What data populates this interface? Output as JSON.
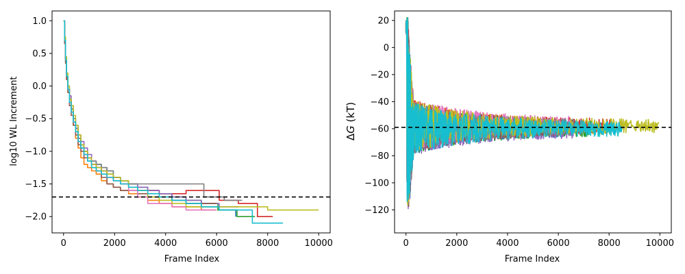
{
  "chart_data": [
    {
      "type": "line",
      "title": "",
      "xlabel": "Frame Index",
      "ylabel": "log10 WL Increment",
      "xlim": [
        -450,
        10450
      ],
      "ylim": [
        -2.25,
        1.15
      ],
      "xticks": [
        0,
        2000,
        4000,
        6000,
        8000,
        10000
      ],
      "yticks": [
        1.0,
        0.5,
        0.0,
        -0.5,
        -1.0,
        -1.5,
        -2.0
      ],
      "xtick_labels": [
        "0",
        "2000",
        "4000",
        "6000",
        "8000",
        "10000"
      ],
      "ytick_labels": [
        "1.0",
        "0.5",
        "0.0",
        "−0.5",
        "−1.0",
        "−1.5",
        "−2.0"
      ],
      "grid": false,
      "hline": {
        "y": -1.7,
        "style": "dashed",
        "color": "#000000"
      },
      "series": [
        {
          "color": "#1f77b4",
          "x": [
            0,
            40,
            80,
            120,
            170,
            230,
            300,
            380,
            470,
            570,
            680,
            800,
            940,
            1100,
            1280,
            1480,
            1700,
            1950,
            2230,
            2550,
            2900,
            3300,
            3750,
            4250,
            4800,
            5400,
            6050,
            6750
          ],
          "y": [
            1.0,
            0.7,
            0.4,
            0.15,
            -0.05,
            -0.2,
            -0.35,
            -0.5,
            -0.65,
            -0.8,
            -0.9,
            -1.0,
            -1.1,
            -1.15,
            -1.2,
            -1.25,
            -1.3,
            -1.4,
            -1.45,
            -1.5,
            -1.55,
            -1.6,
            -1.65,
            -1.75,
            -1.8,
            -1.85,
            -1.9,
            -2.0
          ]
        },
        {
          "color": "#ff7f0e",
          "x": [
            0,
            40,
            80,
            120,
            170,
            230,
            300,
            380,
            470,
            570,
            680,
            800,
            940,
            1100,
            1280,
            1480,
            1700,
            1950,
            2230,
            2550,
            2900,
            3300,
            3750,
            4250,
            4800,
            5400,
            6000
          ],
          "y": [
            1.0,
            0.7,
            0.35,
            0.1,
            -0.1,
            -0.25,
            -0.4,
            -0.6,
            -0.8,
            -0.95,
            -1.1,
            -1.2,
            -1.25,
            -1.3,
            -1.35,
            -1.45,
            -1.5,
            -1.55,
            -1.6,
            -1.65,
            -1.7,
            -1.75,
            -1.8,
            -1.85,
            -1.85,
            -1.9,
            -1.9
          ]
        },
        {
          "color": "#2ca02c",
          "x": [
            0,
            40,
            80,
            120,
            170,
            230,
            300,
            380,
            470,
            570,
            680,
            800,
            940,
            1100,
            1280,
            1480,
            1700,
            1950,
            2230,
            2550,
            2900,
            3300,
            3750,
            4250,
            4800,
            5400,
            6050,
            6800,
            7500
          ],
          "y": [
            1.0,
            0.7,
            0.4,
            0.15,
            -0.05,
            -0.2,
            -0.35,
            -0.55,
            -0.7,
            -0.85,
            -0.95,
            -1.05,
            -1.1,
            -1.2,
            -1.25,
            -1.3,
            -1.35,
            -1.4,
            -1.45,
            -1.5,
            -1.55,
            -1.6,
            -1.65,
            -1.7,
            -1.75,
            -1.8,
            -1.9,
            -2.0,
            -2.0
          ]
        },
        {
          "color": "#d62728",
          "x": [
            0,
            40,
            80,
            120,
            170,
            230,
            300,
            380,
            470,
            570,
            680,
            800,
            940,
            1100,
            1280,
            1480,
            1700,
            1950,
            2230,
            2550,
            2900,
            3300,
            3750,
            4250,
            4800,
            5400,
            6100,
            6850,
            7600,
            8200
          ],
          "y": [
            1.0,
            0.7,
            0.4,
            0.1,
            -0.05,
            -0.25,
            -0.4,
            -0.55,
            -0.7,
            -0.8,
            -0.9,
            -1.0,
            -1.1,
            -1.2,
            -1.25,
            -1.3,
            -1.4,
            -1.45,
            -1.5,
            -1.55,
            -1.6,
            -1.6,
            -1.65,
            -1.65,
            -1.6,
            -1.6,
            -1.75,
            -1.8,
            -2.0,
            -2.0
          ]
        },
        {
          "color": "#9467bd",
          "x": [
            0,
            40,
            80,
            120,
            170,
            230,
            300,
            380,
            470,
            570,
            680,
            800,
            940,
            1100,
            1280,
            1480,
            1700,
            1950,
            2230,
            2550,
            2900,
            3300,
            3750,
            4250,
            4800,
            5400,
            6100,
            6850
          ],
          "y": [
            1.0,
            0.7,
            0.4,
            0.15,
            0.0,
            -0.15,
            -0.3,
            -0.5,
            -0.6,
            -0.75,
            -0.85,
            -0.95,
            -1.05,
            -1.15,
            -1.25,
            -1.3,
            -1.35,
            -1.4,
            -1.45,
            -1.5,
            -1.55,
            -1.6,
            -1.65,
            -1.7,
            -1.75,
            -1.8,
            -1.85,
            -1.85
          ]
        },
        {
          "color": "#8c564b",
          "x": [
            0,
            40,
            80,
            120,
            170,
            230,
            300,
            380,
            470,
            570,
            680,
            800,
            940,
            1100,
            1280,
            1480,
            1700,
            1950,
            2230,
            2550,
            2900,
            3300,
            3750,
            4250,
            4800,
            5400,
            6000
          ],
          "y": [
            1.0,
            0.65,
            0.35,
            0.1,
            -0.1,
            -0.3,
            -0.45,
            -0.6,
            -0.75,
            -0.9,
            -1.0,
            -1.1,
            -1.15,
            -1.25,
            -1.3,
            -1.4,
            -1.5,
            -1.55,
            -1.6,
            -1.6,
            -1.65,
            -1.7,
            -1.7,
            -1.75,
            -1.8,
            -1.8,
            -1.8
          ]
        },
        {
          "color": "#e377c2",
          "x": [
            0,
            40,
            80,
            120,
            170,
            230,
            300,
            380,
            470,
            570,
            680,
            800,
            940,
            1100,
            1280,
            1480,
            1700,
            1950,
            2230,
            2550,
            2900,
            3300,
            3750,
            4250,
            4800,
            5200,
            6000
          ],
          "y": [
            1.0,
            0.7,
            0.4,
            0.15,
            -0.05,
            -0.25,
            -0.4,
            -0.55,
            -0.7,
            -0.85,
            -0.95,
            -1.05,
            -1.15,
            -1.2,
            -1.3,
            -1.35,
            -1.4,
            -1.45,
            -1.5,
            -1.6,
            -1.7,
            -1.8,
            -1.8,
            -1.85,
            -1.9,
            -1.9,
            -1.9
          ]
        },
        {
          "color": "#7f7f7f",
          "x": [
            0,
            40,
            80,
            120,
            170,
            230,
            300,
            380,
            470,
            570,
            680,
            800,
            940,
            1100,
            1280,
            1480,
            1700,
            1950,
            2230,
            2550,
            2900,
            3300,
            3750,
            4250,
            4800,
            5500,
            6300,
            7000
          ],
          "y": [
            1.0,
            0.7,
            0.4,
            0.15,
            0.0,
            -0.2,
            -0.35,
            -0.5,
            -0.65,
            -0.8,
            -0.9,
            -1.0,
            -1.1,
            -1.15,
            -1.2,
            -1.25,
            -1.3,
            -1.4,
            -1.45,
            -1.5,
            -1.5,
            -1.5,
            -1.5,
            -1.5,
            -1.5,
            -1.7,
            -1.75,
            -1.75
          ]
        },
        {
          "color": "#bcbd22",
          "x": [
            0,
            40,
            80,
            120,
            170,
            230,
            300,
            380,
            470,
            570,
            680,
            800,
            940,
            1100,
            1280,
            1480,
            1700,
            1950,
            2230,
            2550,
            2900,
            3300,
            3750,
            4250,
            4800,
            5500,
            6300,
            7100,
            8000,
            9000,
            10000
          ],
          "y": [
            1.0,
            0.75,
            0.45,
            0.2,
            0.0,
            -0.2,
            -0.3,
            -0.45,
            -0.6,
            -0.75,
            -0.9,
            -1.0,
            -1.1,
            -1.2,
            -1.25,
            -1.3,
            -1.35,
            -1.4,
            -1.45,
            -1.55,
            -1.6,
            -1.7,
            -1.75,
            -1.8,
            -1.85,
            -1.85,
            -1.85,
            -1.85,
            -1.9,
            -1.9,
            -1.9
          ]
        },
        {
          "color": "#17becf",
          "x": [
            0,
            40,
            80,
            120,
            170,
            230,
            300,
            380,
            470,
            570,
            680,
            800,
            940,
            1100,
            1280,
            1480,
            1700,
            1950,
            2230,
            2550,
            2900,
            3300,
            3750,
            4250,
            4800,
            5400,
            6100,
            6900,
            7400,
            7900,
            8600
          ],
          "y": [
            1.0,
            0.7,
            0.4,
            0.15,
            -0.05,
            -0.25,
            -0.4,
            -0.55,
            -0.7,
            -0.85,
            -0.95,
            -1.05,
            -1.15,
            -1.25,
            -1.3,
            -1.35,
            -1.4,
            -1.45,
            -1.5,
            -1.55,
            -1.6,
            -1.65,
            -1.7,
            -1.75,
            -1.8,
            -1.85,
            -1.9,
            -1.9,
            -2.1,
            -2.1,
            -2.1
          ]
        }
      ]
    },
    {
      "type": "line",
      "title": "",
      "xlabel": "Frame Index",
      "ylabel_prefix": "Δ",
      "ylabel_italic": "G",
      "ylabel_suffix": " (kT)",
      "xlim": [
        -450,
        10450
      ],
      "ylim": [
        -137,
        27
      ],
      "xticks": [
        0,
        2000,
        4000,
        6000,
        8000,
        10000
      ],
      "yticks": [
        20,
        0,
        -20,
        -40,
        -60,
        -80,
        -100,
        -120
      ],
      "xtick_labels": [
        "0",
        "2000",
        "4000",
        "6000",
        "8000",
        "10000"
      ],
      "ytick_labels": [
        "20",
        "0",
        "−20",
        "−40",
        "−60",
        "−80",
        "−100",
        "−120"
      ],
      "grid": false,
      "hline": {
        "y": -59,
        "style": "dashed",
        "color": "#000000"
      },
      "series": [
        {
          "color": "#1f77b4",
          "end_x": 6300,
          "center": -60
        },
        {
          "color": "#ff7f0e",
          "end_x": 5700,
          "center": -58
        },
        {
          "color": "#2ca02c",
          "end_x": 7300,
          "center": -60
        },
        {
          "color": "#d62728",
          "end_x": 8100,
          "center": -58
        },
        {
          "color": "#9467bd",
          "end_x": 6600,
          "center": -61
        },
        {
          "color": "#8c564b",
          "end_x": 5900,
          "center": -59
        },
        {
          "color": "#e377c2",
          "end_x": 6500,
          "center": -57
        },
        {
          "color": "#7f7f7f",
          "end_x": 7000,
          "center": -59
        },
        {
          "color": "#bcbd22",
          "end_x": 9950,
          "center": -58
        },
        {
          "color": "#17becf",
          "end_x": 8500,
          "center": -60
        }
      ]
    }
  ]
}
